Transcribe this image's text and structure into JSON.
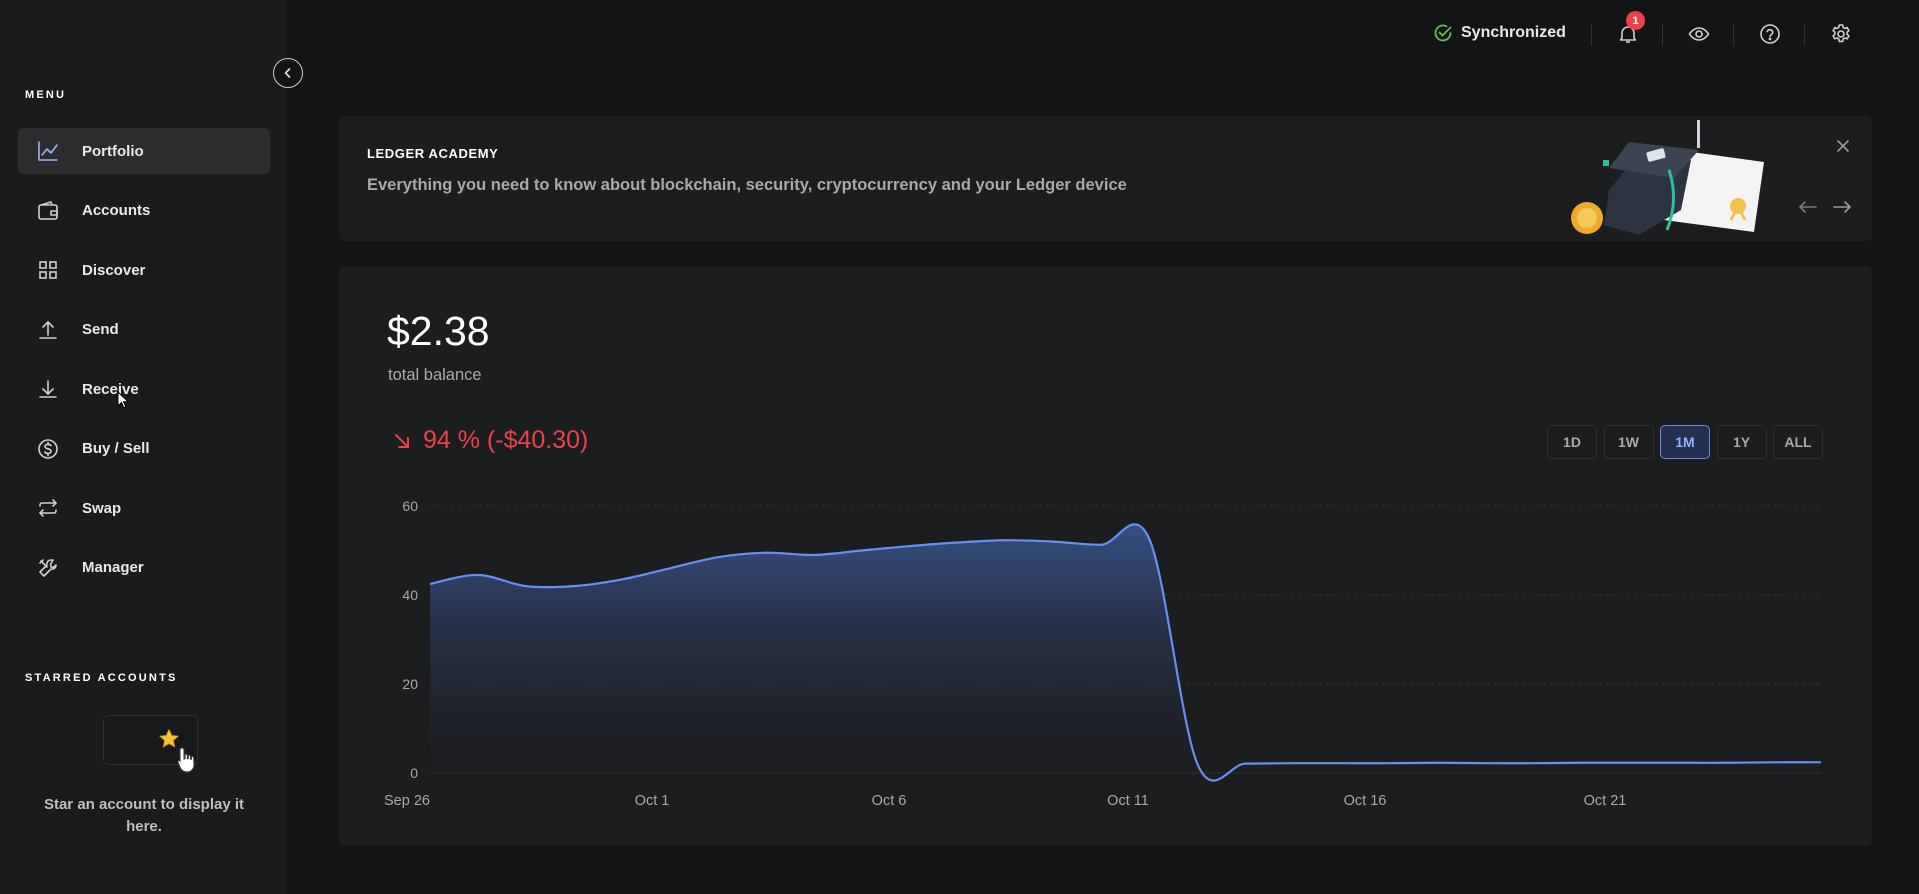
{
  "sidebar": {
    "menu_title": "MENU",
    "items": [
      {
        "label": "Portfolio",
        "icon": "chart-line-icon",
        "active": true
      },
      {
        "label": "Accounts",
        "icon": "wallet-icon",
        "active": false
      },
      {
        "label": "Discover",
        "icon": "grid-icon",
        "active": false
      },
      {
        "label": "Send",
        "icon": "upload-icon",
        "active": false
      },
      {
        "label": "Receive",
        "icon": "download-icon",
        "active": false
      },
      {
        "label": "Buy / Sell",
        "icon": "dollar-circle-icon",
        "active": false
      },
      {
        "label": "Swap",
        "icon": "swap-arrows-icon",
        "active": false
      },
      {
        "label": "Manager",
        "icon": "tools-icon",
        "active": false
      }
    ],
    "starred_title": "STARRED ACCOUNTS",
    "starred_empty": "Star an account to display it here."
  },
  "topbar": {
    "sync_status": "Synchronized",
    "notifications_count": "1",
    "icons": [
      "bell-icon",
      "eye-icon",
      "help-icon",
      "settings-icon"
    ]
  },
  "banner": {
    "title": "LEDGER ACADEMY",
    "description": "Everything you need to know about blockchain, security, cryptocurrency and your Ledger device"
  },
  "portfolio": {
    "balance": "$2.38",
    "balance_label": "total balance",
    "change": "94 % (-$40.30)",
    "ranges": [
      "1D",
      "1W",
      "1M",
      "1Y",
      "ALL"
    ],
    "active_range": "1M"
  },
  "colors": {
    "accent": "#6490f1",
    "negative": "#e9434a",
    "background": "#131415",
    "card": "#1c1d1f"
  },
  "chart_data": {
    "type": "area",
    "x_ticks": [
      "Sep 26",
      "Oct 1",
      "Oct 6",
      "Oct 11",
      "Oct 16",
      "Oct 21"
    ],
    "y_ticks": [
      0,
      20,
      40,
      60
    ],
    "ylim": [
      0,
      60
    ],
    "xlim": [
      "Sep 26",
      "Oct 25"
    ],
    "grid": true,
    "x": [
      "Sep 26",
      "Sep 27",
      "Sep 28",
      "Sep 29",
      "Sep 30",
      "Oct 1",
      "Oct 2",
      "Oct 3",
      "Oct 4",
      "Oct 5",
      "Oct 6",
      "Oct 7",
      "Oct 8",
      "Oct 9",
      "Oct 10",
      "Oct 11",
      "Oct 12",
      "Oct 13",
      "Oct 14",
      "Oct 15",
      "Oct 16",
      "Oct 17",
      "Oct 18",
      "Oct 19",
      "Oct 20",
      "Oct 21",
      "Oct 22",
      "Oct 23",
      "Oct 24",
      "Oct 25"
    ],
    "values": [
      42.5,
      44.5,
      42,
      42,
      43.5,
      46,
      48.5,
      49.5,
      49,
      50,
      51,
      51.8,
      52.3,
      52,
      51.3,
      52.5,
      2,
      2.1,
      2.2,
      2.2,
      2.2,
      2.3,
      2.2,
      2.2,
      2.3,
      2.3,
      2.3,
      2.3,
      2.4,
      2.4
    ],
    "color": "#6490f1"
  }
}
